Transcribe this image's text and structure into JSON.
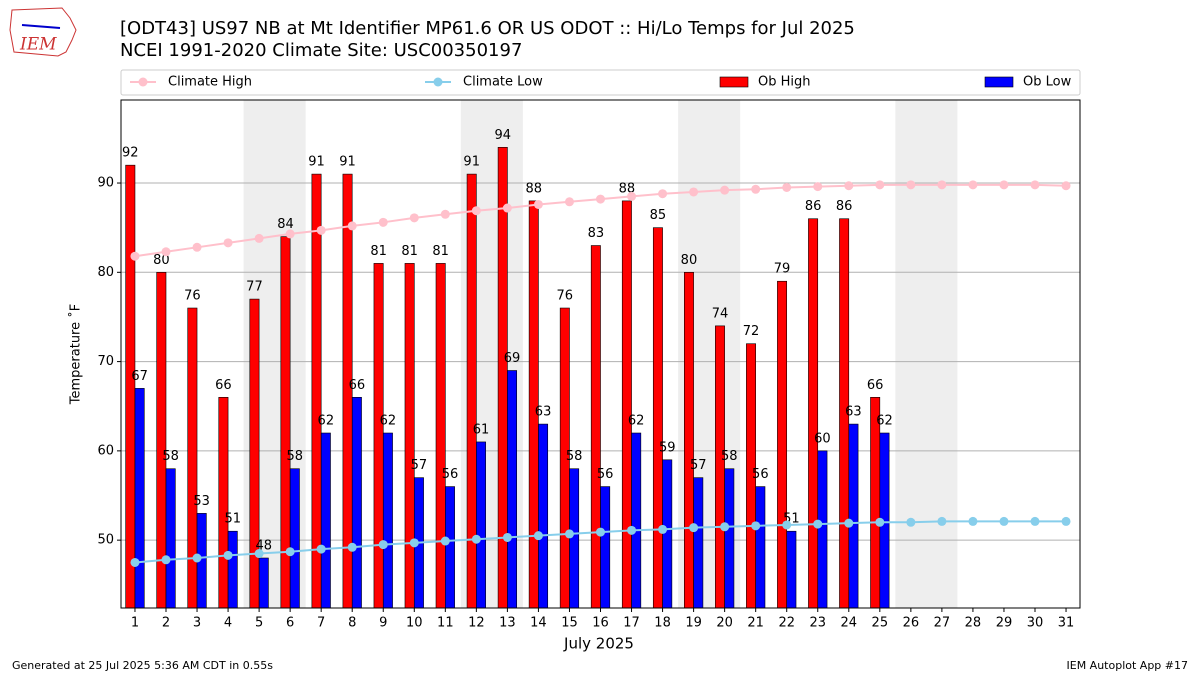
{
  "chart_data": {
    "type": "bar",
    "title": "[ODT43] US97 NB at Mt Identifier MP61.6  OR US ODOT :: Hi/Lo Temps for Jul 2025",
    "subtitle": "NCEI 1991-2020 Climate Site: USC00350197",
    "logo_text": "IEM",
    "x_label": "July 2025",
    "y_label": "Temperature ˚F",
    "footer_left": "Generated at 25 Jul 2025 5:36 AM CDT in 0.55s",
    "footer_right": "IEM Autoplot App #17",
    "x": [
      1,
      2,
      3,
      4,
      5,
      6,
      7,
      8,
      9,
      10,
      11,
      12,
      13,
      14,
      15,
      16,
      17,
      18,
      19,
      20,
      21,
      22,
      23,
      24,
      25,
      26,
      27,
      28,
      29,
      30,
      31
    ],
    "xlim": [
      0.55,
      31.45
    ],
    "xticks": [
      1,
      2,
      3,
      4,
      5,
      6,
      7,
      8,
      9,
      10,
      11,
      12,
      13,
      14,
      15,
      16,
      17,
      18,
      19,
      20,
      21,
      22,
      23,
      24,
      25,
      26,
      27,
      28,
      29,
      30,
      31
    ],
    "ylim": [
      42.4,
      99.3
    ],
    "yticks": [
      50,
      60,
      70,
      80,
      90
    ],
    "grid": true,
    "shaded_x_ranges": [
      [
        4.5,
        6.5
      ],
      [
        11.5,
        13.5
      ],
      [
        18.5,
        20.5
      ],
      [
        25.5,
        27.5
      ]
    ],
    "shade_color": "#eeeeee",
    "series": [
      {
        "name": "Climate High",
        "kind": "line",
        "color": "#ffc0cb",
        "values": [
          81.8,
          82.3,
          82.8,
          83.3,
          83.8,
          84.3,
          84.7,
          85.2,
          85.6,
          86.1,
          86.5,
          86.9,
          87.2,
          87.6,
          87.9,
          88.2,
          88.5,
          88.8,
          89.0,
          89.2,
          89.3,
          89.5,
          89.6,
          89.7,
          89.8,
          89.8,
          89.8,
          89.8,
          89.8,
          89.8,
          89.7
        ]
      },
      {
        "name": "Climate Low",
        "kind": "line",
        "color": "#87ceeb",
        "values": [
          47.5,
          47.8,
          48.0,
          48.3,
          48.5,
          48.7,
          49.0,
          49.2,
          49.5,
          49.7,
          49.9,
          50.1,
          50.3,
          50.5,
          50.7,
          50.9,
          51.1,
          51.2,
          51.4,
          51.5,
          51.6,
          51.7,
          51.8,
          51.9,
          52.0,
          52.0,
          52.1,
          52.1,
          52.1,
          52.1,
          52.1
        ]
      },
      {
        "name": "Ob High",
        "kind": "bar",
        "color": "#ff0000",
        "values": [
          92,
          80,
          76,
          66,
          77,
          84,
          91,
          91,
          81,
          81,
          81,
          91,
          94,
          88,
          76,
          83,
          88,
          85,
          80,
          74,
          72,
          79,
          86,
          86,
          66,
          null,
          null,
          null,
          null,
          null,
          null
        ]
      },
      {
        "name": "Ob Low",
        "kind": "bar",
        "color": "#0000ff",
        "values": [
          67,
          58,
          53,
          51,
          48,
          58,
          62,
          66,
          62,
          57,
          56,
          61,
          69,
          63,
          58,
          56,
          62,
          59,
          57,
          58,
          56,
          51,
          60,
          63,
          62,
          null,
          null,
          null,
          null,
          null,
          null
        ]
      }
    ]
  }
}
